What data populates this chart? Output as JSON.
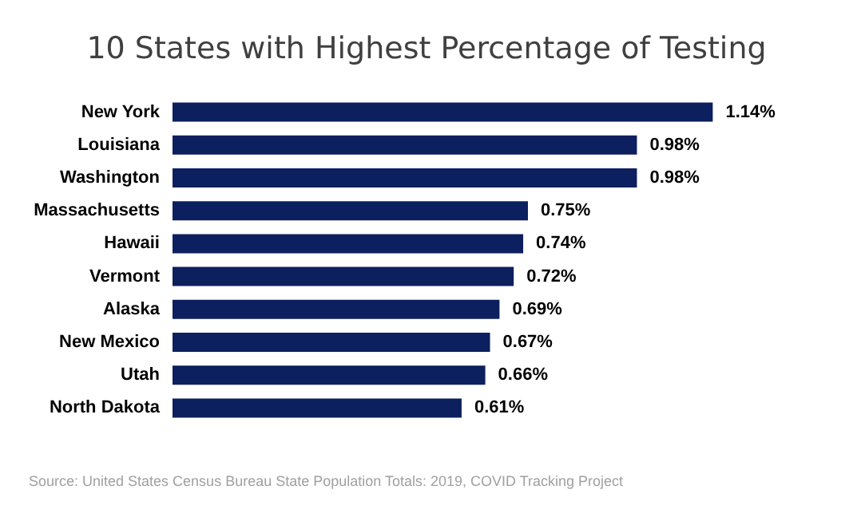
{
  "chart_data": {
    "type": "bar",
    "orientation": "horizontal",
    "title": "10 States with Highest Percentage of Testing",
    "categories": [
      "New York",
      "Louisiana",
      "Washington",
      "Massachusetts",
      "Hawaii",
      "Vermont",
      "Alaska",
      "New Mexico",
      "Utah",
      "North Dakota"
    ],
    "values": [
      1.14,
      0.98,
      0.98,
      0.75,
      0.74,
      0.72,
      0.69,
      0.67,
      0.66,
      0.61
    ],
    "value_labels": [
      "1.14%",
      "0.98%",
      "0.98%",
      "0.75%",
      "0.74%",
      "0.72%",
      "0.69%",
      "0.67%",
      "0.66%",
      "0.61%"
    ],
    "color": "#0c1f5e",
    "annotations": [
      "Source: United States Census Bureau State Population Totals: 2019, COVID Tracking Project"
    ]
  }
}
